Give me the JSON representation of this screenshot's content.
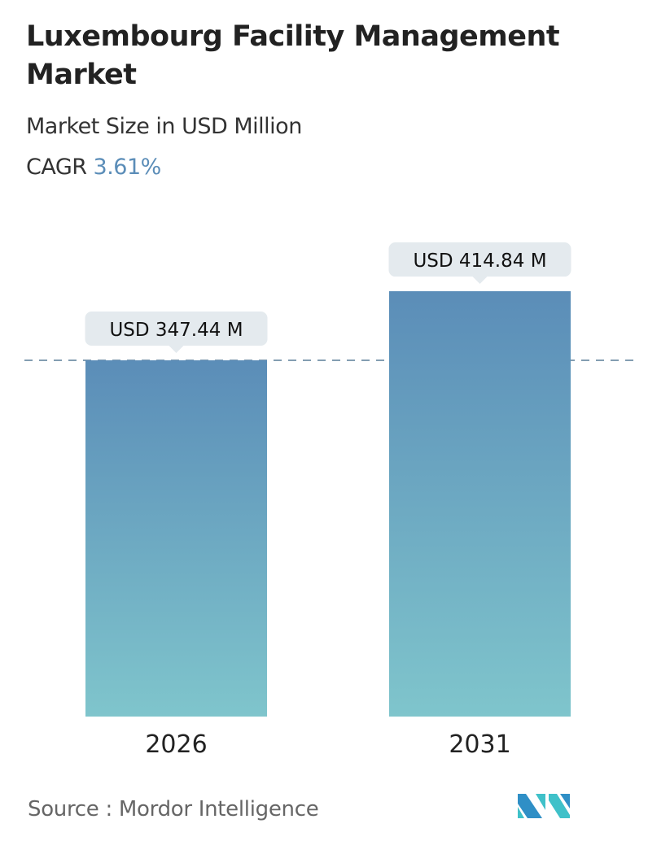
{
  "title": "Luxembourg Facility Management Market",
  "subtitle": "Market Size in USD Million",
  "cagr": {
    "label": "CAGR",
    "value": "3.61%"
  },
  "source": {
    "label": "Source :",
    "value": "Mordor Intelligence"
  },
  "colors": {
    "bar_top": "#5b8db8",
    "bar_bottom": "#7fc5cc",
    "label_bg": "#e4eaee",
    "accent": "#5b8db8"
  },
  "chart_data": {
    "type": "bar",
    "categories": [
      "2026",
      "2031"
    ],
    "values": [
      347.44,
      414.84
    ],
    "data_labels": [
      "USD 347.44 M",
      "USD 414.84 M"
    ],
    "title": "Luxembourg Facility Management Market",
    "subtitle": "Market Size in USD Million",
    "reference_line": "dashed at 2026 value",
    "grid": false
  }
}
